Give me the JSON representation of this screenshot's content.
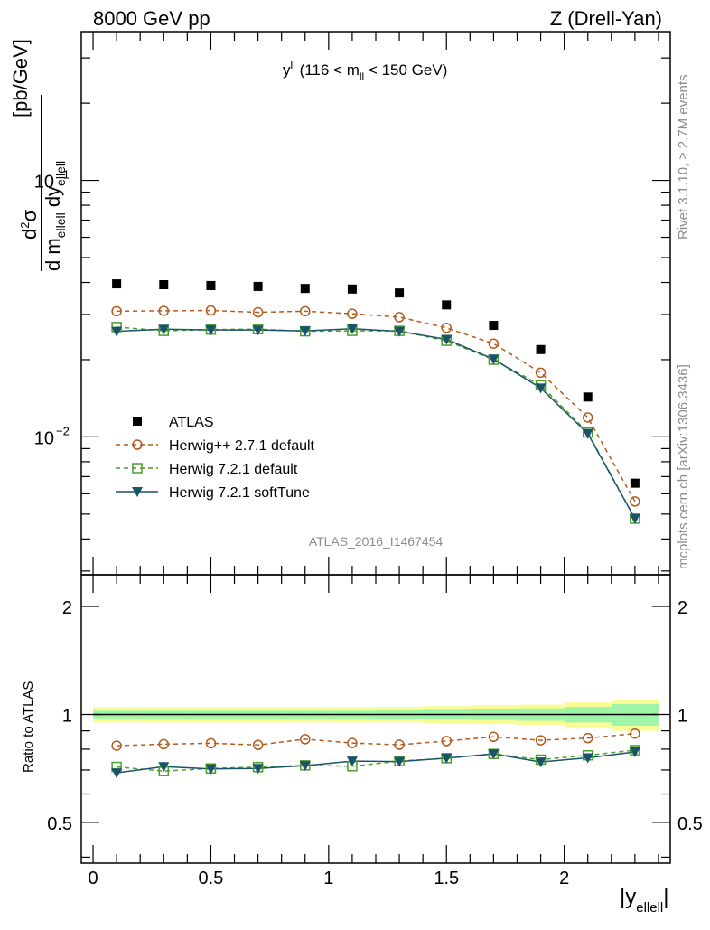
{
  "header": {
    "left_title": "8000 GeV pp",
    "right_title": "Z (Drell-Yan)",
    "side_text_upper": "Rivet 3.1.10, ≥ 2.7M events",
    "side_text_lower": "mcplots.cern.ch [arXiv:1306.3436]",
    "watermark": "ATLAS_2016_I1467454",
    "plot_label": "y^ll (116 < m_ll < 150 GeV)"
  },
  "axes": {
    "x_label": "|y_ellell|",
    "y_label_main": "d²σ / d m_ellell dy_ellell [pb/GeV]",
    "y_label_ratio": "Ratio to ATLAS",
    "x_ticks": [
      "0",
      "0.5",
      "1",
      "1.5",
      "2"
    ],
    "y_ticks_main": [
      "10^-1",
      "10^-2"
    ],
    "y_ticks_ratio": [
      "0.5",
      "1",
      "2"
    ]
  },
  "legend": [
    {
      "label": "ATLAS",
      "style": "square-filled",
      "color": "#000000"
    },
    {
      "label": "Herwig++ 2.7.1 default",
      "style": "circle-open-dashed",
      "color": "#b35b1e"
    },
    {
      "label": "Herwig 7.2.1 default",
      "style": "square-open-dashed",
      "color": "#4a9e2a"
    },
    {
      "label": "Herwig 7.2.1 softTune",
      "style": "triangle-down-solid",
      "color": "#1b5468"
    }
  ],
  "chart_data": [
    {
      "type": "scatter",
      "panel": "main",
      "title": "y^ll (116 < m_ll < 150 GeV)",
      "xlabel": "|y_ellell|",
      "ylabel": "d²σ / d m_ellell dy_ellell [pb/GeV]",
      "xlim": [
        -0.05,
        2.45
      ],
      "ylim": [
        0.0029,
        0.38
      ],
      "yscale": "log",
      "x": [
        0.1,
        0.3,
        0.5,
        0.7,
        0.9,
        1.1,
        1.3,
        1.5,
        1.7,
        1.9,
        2.1,
        2.3
      ],
      "series": [
        {
          "name": "ATLAS",
          "values": [
            0.0395,
            0.0392,
            0.0389,
            0.0386,
            0.0379,
            0.0377,
            0.0364,
            0.0327,
            0.0272,
            0.0219,
            0.0143,
            0.0066
          ]
        },
        {
          "name": "Herwig++ 2.7.1 default",
          "values": [
            0.0309,
            0.031,
            0.0311,
            0.0306,
            0.0309,
            0.0302,
            0.0293,
            0.0266,
            0.0231,
            0.0178,
            0.0119,
            0.0056
          ]
        },
        {
          "name": "Herwig 7.2.1 default",
          "values": [
            0.0268,
            0.0259,
            0.0262,
            0.0263,
            0.0258,
            0.0259,
            0.0259,
            0.0237,
            0.02,
            0.0159,
            0.0104,
            0.0048
          ]
        },
        {
          "name": "Herwig 7.2.1 softTune",
          "values": [
            0.0258,
            0.0263,
            0.0261,
            0.0261,
            0.0259,
            0.0264,
            0.0258,
            0.024,
            0.0201,
            0.0155,
            0.0103,
            0.0048
          ]
        }
      ],
      "grid": false,
      "legend_position": "center-left"
    },
    {
      "type": "scatter",
      "panel": "ratio",
      "xlabel": "|y_ellell|",
      "ylabel": "Ratio to ATLAS",
      "xlim": [
        -0.05,
        2.45
      ],
      "ylim": [
        0.385,
        2.45
      ],
      "yscale": "log",
      "x": [
        0.1,
        0.3,
        0.5,
        0.7,
        0.9,
        1.1,
        1.3,
        1.5,
        1.7,
        1.9,
        2.1,
        2.3
      ],
      "reference": 1,
      "uncertainty_band": {
        "x_edges": [
          0.0,
          0.2,
          0.4,
          0.6,
          0.8,
          1.0,
          1.2,
          1.4,
          1.6,
          1.8,
          2.0,
          2.2,
          2.4
        ],
        "inner": [
          0.025,
          0.025,
          0.025,
          0.025,
          0.025,
          0.025,
          0.027,
          0.03,
          0.035,
          0.04,
          0.05,
          0.07
        ],
        "outer": [
          0.05,
          0.05,
          0.05,
          0.05,
          0.05,
          0.05,
          0.05,
          0.055,
          0.06,
          0.065,
          0.08,
          0.1
        ]
      },
      "series": [
        {
          "name": "Herwig++ 2.7.1 default",
          "values": [
            0.818,
            0.826,
            0.831,
            0.822,
            0.853,
            0.832,
            0.823,
            0.843,
            0.866,
            0.847,
            0.859,
            0.884
          ]
        },
        {
          "name": "Herwig 7.2.1 default",
          "values": [
            0.714,
            0.695,
            0.707,
            0.713,
            0.721,
            0.717,
            0.741,
            0.755,
            0.776,
            0.748,
            0.769,
            0.795
          ]
        },
        {
          "name": "Herwig 7.2.1 softTune",
          "values": [
            0.687,
            0.715,
            0.705,
            0.707,
            0.72,
            0.741,
            0.739,
            0.755,
            0.776,
            0.737,
            0.757,
            0.786
          ]
        }
      ]
    }
  ],
  "colors": {
    "atlas": "#000000",
    "herwigpp": "#b35b1e",
    "herwig7_default": "#4a9e2a",
    "herwig7_softtune": "#1b5468",
    "band_inner": "#9ef5a8",
    "band_outer": "#fbfb96"
  }
}
